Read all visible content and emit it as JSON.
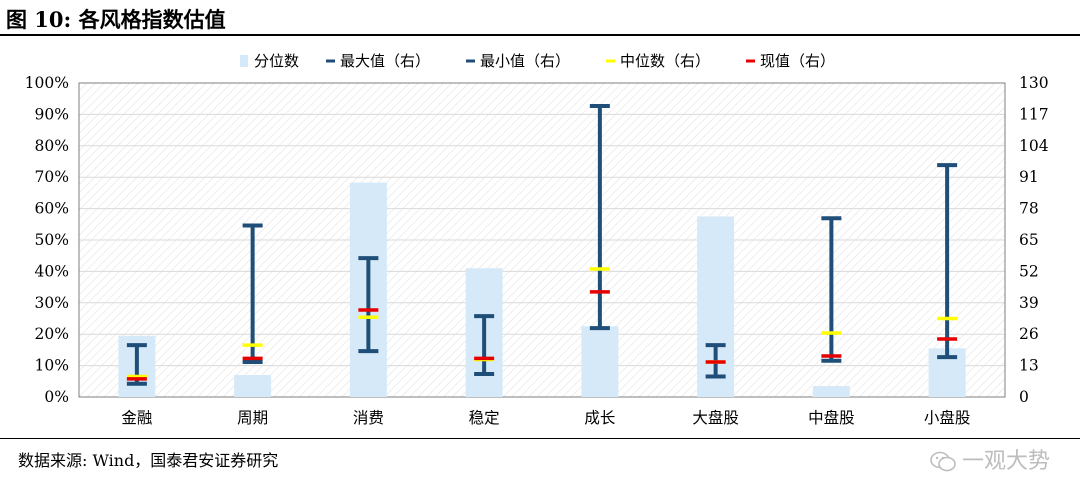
{
  "title": "图 10:  各风格指数估值",
  "source_text": "数据来源:    Wind，国泰君安证券研究",
  "watermark_text": "一观大势",
  "colors": {
    "percentile_bar": "#d6e9f8",
    "range_line": "#1f4e79",
    "median_mark": "#ffff00",
    "current_mark": "#e60000",
    "grid": "#d9d9d9"
  },
  "chart_data": {
    "type": "bar",
    "categories": [
      "金融",
      "周期",
      "消费",
      "稳定",
      "成长",
      "大盘股",
      "中盘股",
      "小盘股"
    ],
    "series": [
      {
        "name": "分位数",
        "axis": "left",
        "values": [
          0.195,
          0.07,
          0.683,
          0.41,
          0.225,
          0.575,
          0.035,
          0.155
        ]
      },
      {
        "name": "最大值（右）",
        "axis": "right",
        "values": [
          21.5,
          71,
          57.5,
          33.5,
          120.5,
          21.5,
          74,
          96
        ]
      },
      {
        "name": "最小值（右）",
        "axis": "right",
        "values": [
          5.5,
          14.5,
          19,
          9.5,
          28.5,
          8.5,
          15,
          16.5
        ]
      },
      {
        "name": "中位数（右）",
        "axis": "right",
        "values": [
          8.5,
          21.5,
          33,
          15.5,
          53,
          14.5,
          26.5,
          32.5
        ]
      },
      {
        "name": "现值（右）",
        "axis": "right",
        "values": [
          7.5,
          16,
          36,
          16,
          43.5,
          14.5,
          17,
          24
        ]
      }
    ],
    "left_axis": {
      "ylim": [
        0,
        1
      ],
      "ticks": [
        "0%",
        "10%",
        "20%",
        "30%",
        "40%",
        "50%",
        "60%",
        "70%",
        "80%",
        "90%",
        "100%"
      ]
    },
    "right_axis": {
      "ylim": [
        0,
        130
      ],
      "ticks": [
        "0",
        "13",
        "26",
        "39",
        "52",
        "65",
        "78",
        "91",
        "104",
        "117",
        "130"
      ]
    },
    "legend_placement": "top"
  }
}
